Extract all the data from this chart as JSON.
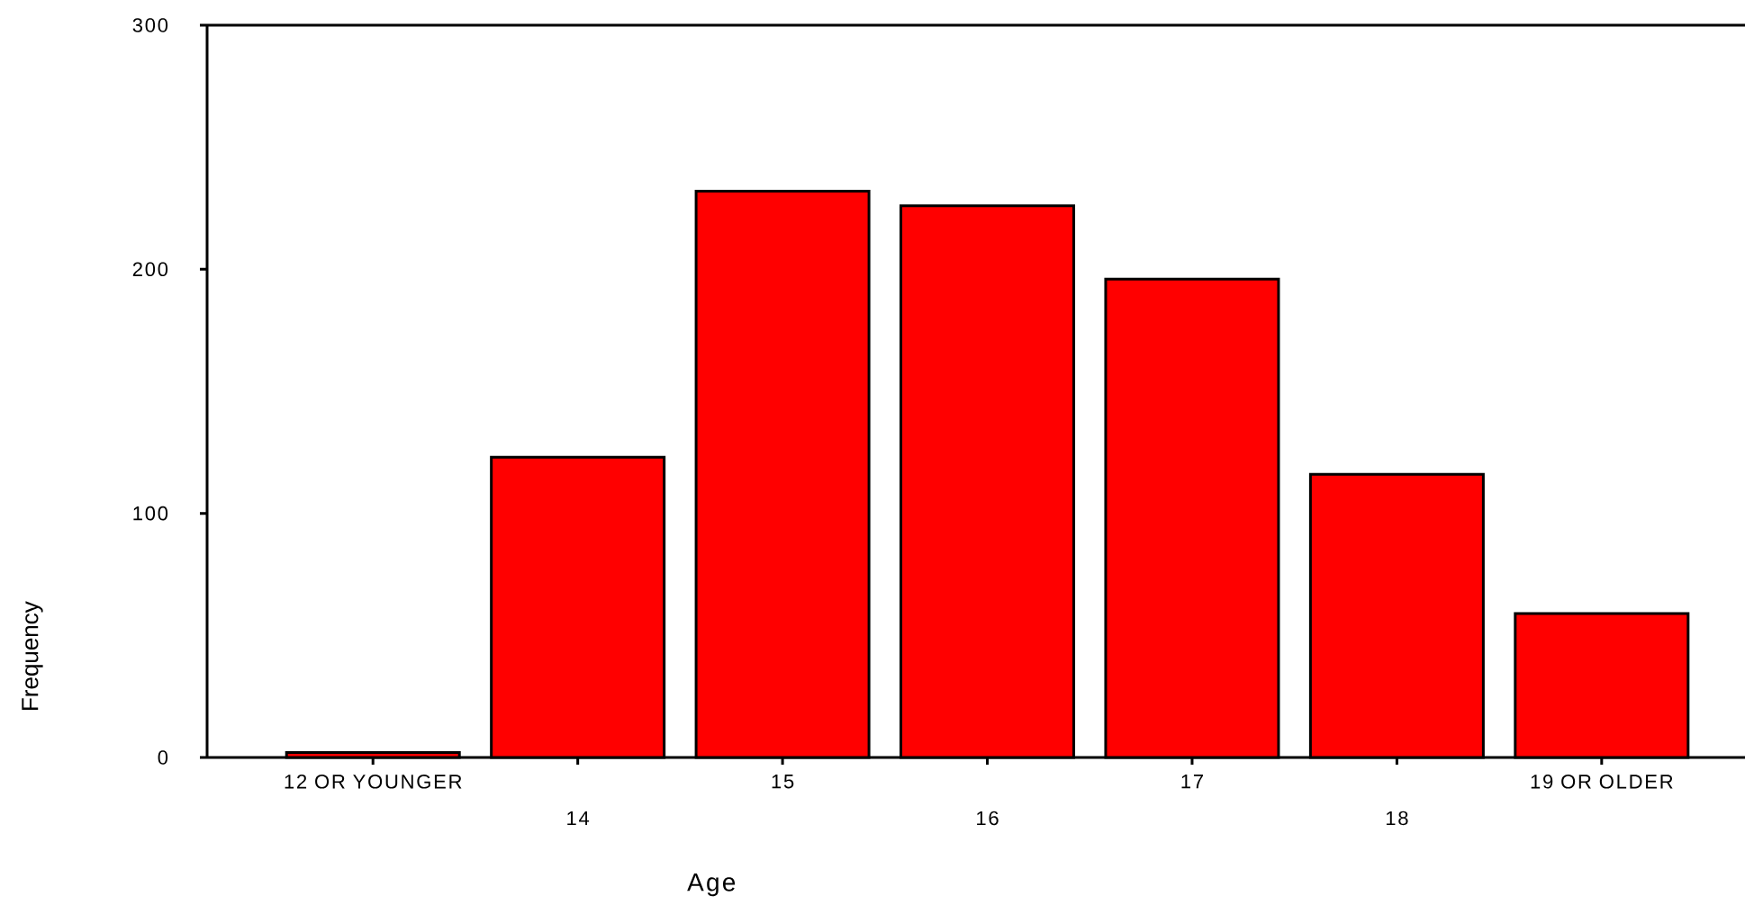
{
  "chart_data": {
    "type": "bar",
    "xlabel": "Age",
    "ylabel": "Frequency",
    "categories": [
      "12 OR YOUNGER",
      "14",
      "15",
      "16",
      "17",
      "18",
      "19 OR OLDER"
    ],
    "values": [
      2,
      123,
      232,
      226,
      196,
      116,
      59
    ],
    "color": "#ff0000",
    "ylim": [
      0,
      300
    ],
    "yticks": [
      0,
      100,
      200,
      300
    ]
  }
}
